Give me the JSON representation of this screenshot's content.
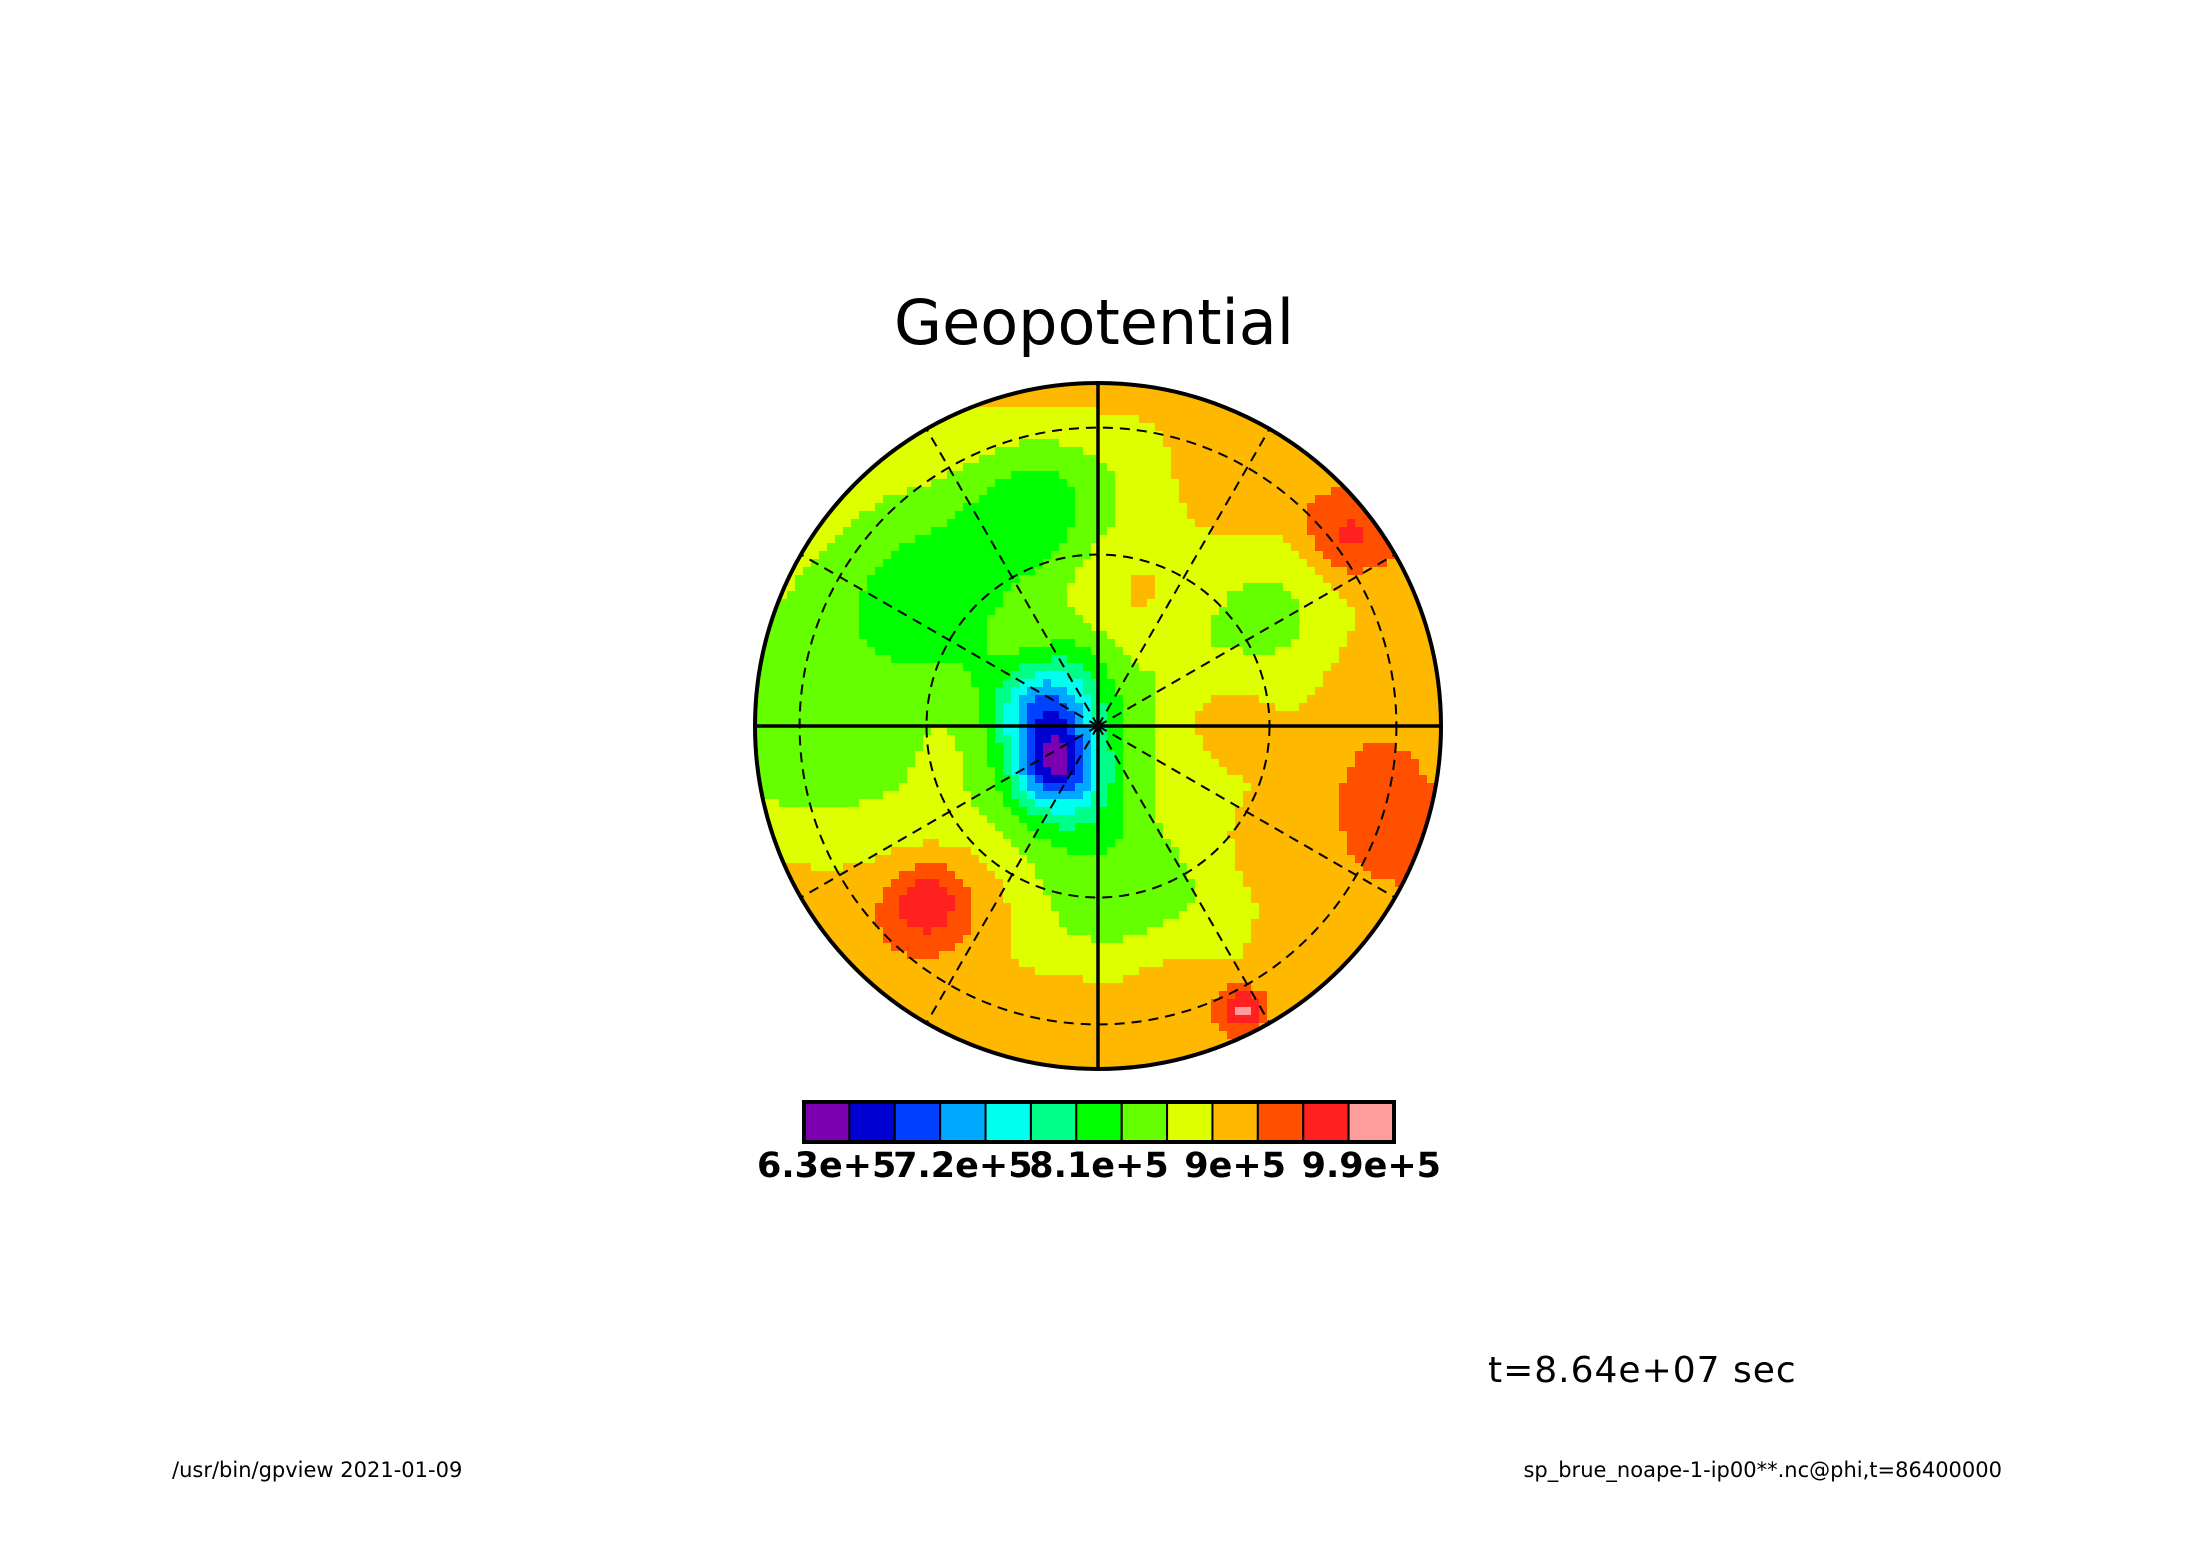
{
  "chart_data": {
    "type": "heatmap",
    "projection": "polar-stereographic",
    "title": "Geopotential",
    "time_label": "t=8.64e+07 sec",
    "colorbar": {
      "colors": [
        "#7a00b0",
        "#0000d0",
        "#0040ff",
        "#00a8ff",
        "#00ffee",
        "#00ff88",
        "#00ff00",
        "#66ff00",
        "#ddff00",
        "#ffb800",
        "#ff5000",
        "#ff2020",
        "#ff9c9c"
      ],
      "tick_labels": [
        "6.3e+5",
        "7.2e+5",
        "8.1e+5",
        "9e+5",
        "9.9e+5"
      ],
      "tick_positions": [
        0,
        3,
        6,
        9,
        12
      ]
    },
    "grid": {
      "meridians_solid": 4,
      "meridians_dashed": 8,
      "latitude_circles": 2
    },
    "field": {
      "background_level": 9,
      "blobs": [
        {
          "a": 3.05,
          "r": 0.84,
          "w": 0.5,
          "lvl": 7
        },
        {
          "a": 2.6,
          "r": 0.8,
          "w": 0.45,
          "lvl": 8
        },
        {
          "a": 2.35,
          "r": 0.55,
          "w": 0.3,
          "lvl": 7
        },
        {
          "a": 1.8,
          "r": 0.7,
          "w": 0.3,
          "lvl": 7
        },
        {
          "a": 1.9,
          "r": 0.66,
          "w": 0.2,
          "lvl": 8
        },
        {
          "a": 0.9,
          "r": 0.45,
          "w": 0.5,
          "lvl": 8
        },
        {
          "a": 0.6,
          "r": 0.7,
          "w": 0.3,
          "lvl": 8
        },
        {
          "a": -0.5,
          "r": 0.35,
          "w": 0.6,
          "lvl": 8
        },
        {
          "a": -1.2,
          "r": 0.6,
          "w": 0.4,
          "lvl": 8
        },
        {
          "a": -1.9,
          "r": 0.4,
          "w": 0.5,
          "lvl": 8
        },
        {
          "a": 1.4,
          "r": 0.4,
          "w": 0.25,
          "lvl": 10
        },
        {
          "a": 2.3,
          "r": 0.35,
          "w": 0.15,
          "lvl": 10
        },
        {
          "a": 1.05,
          "r": 0.85,
          "w": 0.25,
          "lvl": 10
        },
        {
          "a": 0.65,
          "r": 0.9,
          "w": 0.15,
          "lvl": 11
        },
        {
          "a": 0.2,
          "r": 0.82,
          "w": 0.3,
          "lvl": 10
        },
        {
          "a": -0.3,
          "r": 0.85,
          "w": 0.25,
          "lvl": 10
        },
        {
          "a": -0.8,
          "r": 0.82,
          "w": 0.25,
          "lvl": 10
        },
        {
          "a": -1.3,
          "r": 0.82,
          "w": 0.2,
          "lvl": 10
        },
        {
          "a": -1.7,
          "r": 0.85,
          "w": 0.2,
          "lvl": 10
        },
        {
          "a": -2.25,
          "r": 0.68,
          "w": 0.25,
          "lvl": 10
        },
        {
          "a": -2.35,
          "r": 0.72,
          "w": 0.12,
          "lvl": 11
        },
        {
          "a": -0.55,
          "r": 0.38,
          "w": 0.25,
          "lvl": 10
        },
        {
          "a": -0.65,
          "r": 0.6,
          "w": 0.15,
          "lvl": 10
        },
        {
          "a": 0.15,
          "r": 0.38,
          "w": 0.18,
          "lvl": 10
        },
        {
          "a": -1.1,
          "r": 0.93,
          "w": 0.08,
          "lvl": 12
        }
      ],
      "center_blobs": [
        {
          "x": -0.12,
          "y": 0.12,
          "w": 0.13,
          "lvl": 7
        },
        {
          "x": -0.1,
          "y": -0.18,
          "w": 0.12,
          "lvl": 7
        },
        {
          "x": -0.16,
          "y": 0.02,
          "w": 0.1,
          "lvl": 6
        },
        {
          "x": -0.12,
          "y": -0.12,
          "w": 0.08,
          "lvl": 6
        }
      ]
    }
  },
  "footer": {
    "left": "/usr/bin/gpview   2021-01-09",
    "right": "sp_brue_noape-1-ip00**.nc@phi,t=86400000"
  }
}
